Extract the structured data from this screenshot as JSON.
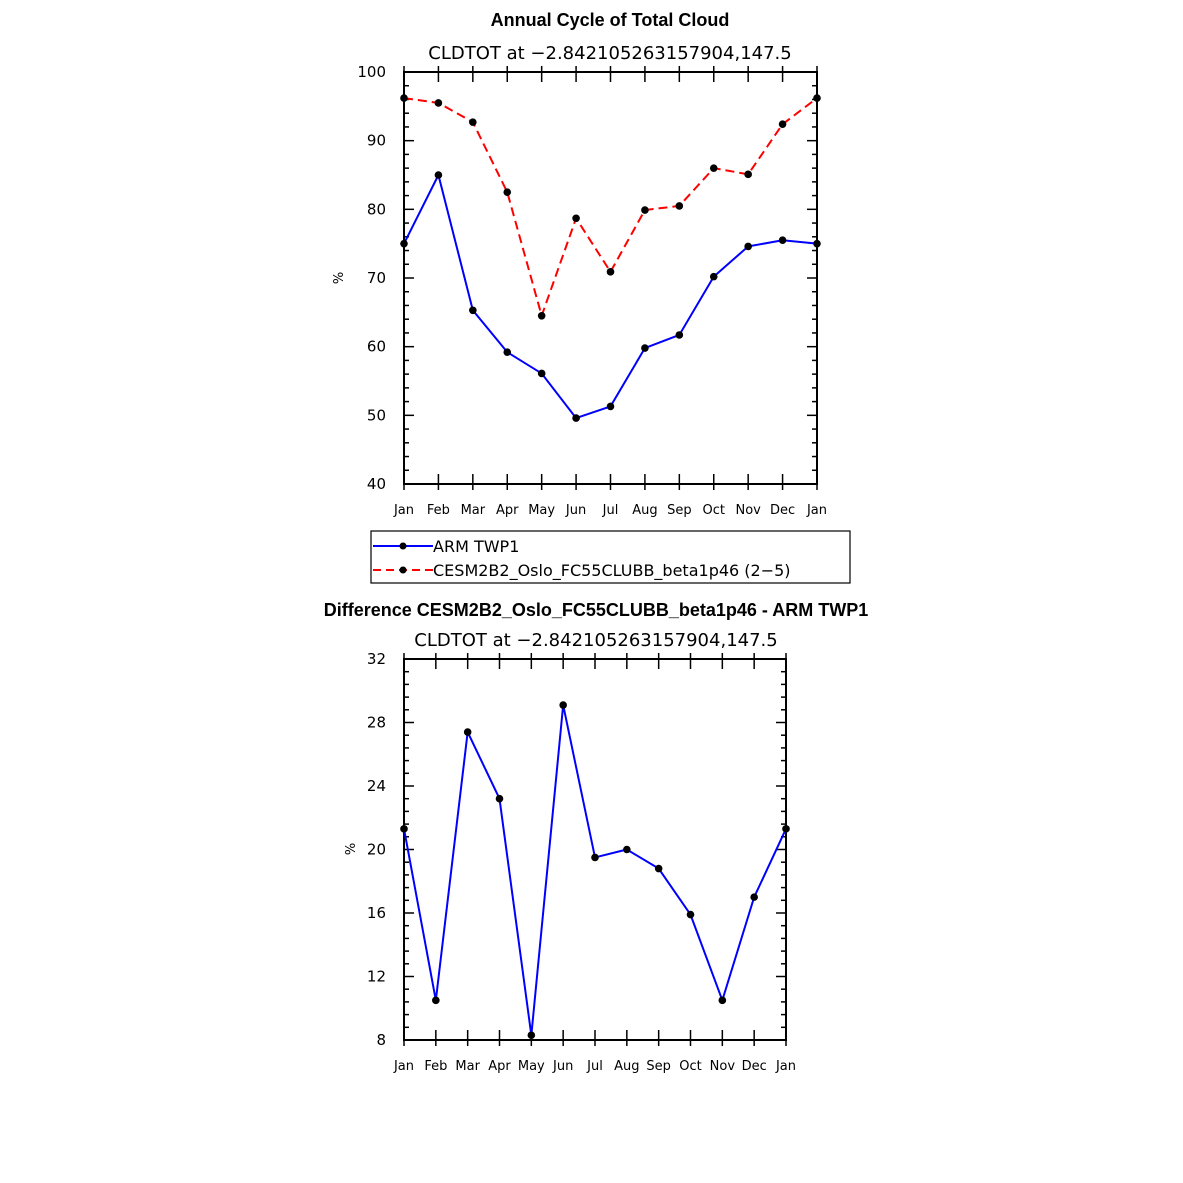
{
  "chart_data": [
    {
      "type": "line",
      "title": "Annual Cycle of Total Cloud",
      "subtitle": "CLDTOT at −2.842105263157904,147.5",
      "ylabel": "%",
      "ylim": [
        40,
        100
      ],
      "yticks": [
        40,
        50,
        60,
        70,
        80,
        90,
        100
      ],
      "categories": [
        "Jan",
        "Feb",
        "Mar",
        "Apr",
        "May",
        "Jun",
        "Jul",
        "Aug",
        "Sep",
        "Oct",
        "Nov",
        "Dec",
        "Jan"
      ],
      "series": [
        {
          "name": "ARM TWP1",
          "color": "#0000ff",
          "dash": "solid",
          "values": [
            75.0,
            85.0,
            65.3,
            59.2,
            56.1,
            49.6,
            51.3,
            59.8,
            61.7,
            70.2,
            74.6,
            75.5,
            75.0
          ]
        },
        {
          "name": "CESM2B2_Oslo_FC55CLUBB_beta1p46 (2−5)",
          "color": "#ff0000",
          "dash": "dashed",
          "values": [
            96.2,
            95.5,
            92.7,
            82.5,
            64.5,
            78.7,
            70.9,
            79.9,
            80.5,
            86.0,
            85.1,
            92.4,
            96.2
          ]
        }
      ],
      "legend": "bottom"
    },
    {
      "type": "line",
      "title": "Difference CESM2B2_Oslo_FC55CLUBB_beta1p46 - ARM TWP1",
      "subtitle": "CLDTOT at −2.842105263157904,147.5",
      "ylabel": "%",
      "ylim": [
        8,
        32
      ],
      "yticks": [
        8,
        12,
        16,
        20,
        24,
        28,
        32
      ],
      "categories": [
        "Jan",
        "Feb",
        "Mar",
        "Apr",
        "May",
        "Jun",
        "Jul",
        "Aug",
        "Sep",
        "Oct",
        "Nov",
        "Dec",
        "Jan"
      ],
      "series": [
        {
          "color": "#0000ff",
          "dash": "solid",
          "values": [
            21.3,
            10.5,
            27.4,
            23.2,
            8.3,
            29.1,
            19.5,
            20.0,
            18.8,
            15.9,
            10.5,
            17.0,
            21.3
          ]
        }
      ]
    }
  ]
}
